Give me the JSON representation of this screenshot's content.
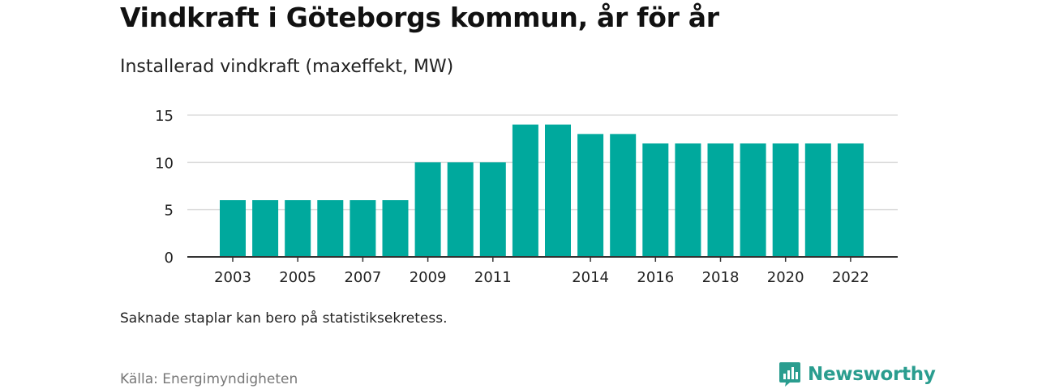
{
  "title": "Vindkraft i Göteborgs kommun, år för år",
  "subtitle": "Installerad vindkraft (maxeffekt, MW)",
  "note": "Saknade staplar kan bero på statistiksekretess.",
  "source": "Källa: Energimyndigheten",
  "brand": {
    "name": "Newsworthy",
    "icon": "newsworthy-logo-icon",
    "color": "#2a9d8f"
  },
  "chart_data": {
    "type": "bar",
    "categories": [
      "2003",
      "2004",
      "2005",
      "2006",
      "2007",
      "2008",
      "2009",
      "2010",
      "2011",
      "2012",
      "2013",
      "2014",
      "2015",
      "2016",
      "2017",
      "2018",
      "2019",
      "2020",
      "2021",
      "2022"
    ],
    "values": [
      6,
      6,
      6,
      6,
      6,
      6,
      10,
      10,
      10,
      14,
      14,
      13,
      13,
      12,
      12,
      12,
      12,
      12,
      12,
      12
    ],
    "x_tick_labels": [
      "2003",
      "2005",
      "2007",
      "2009",
      "2011",
      "2014",
      "2016",
      "2018",
      "2020",
      "2022"
    ],
    "y_ticks": [
      0,
      5,
      10,
      15
    ],
    "ylim": [
      0,
      15
    ],
    "xlabel": "",
    "ylabel": "",
    "grid": true,
    "bar_color": "#00a99d",
    "grid_color": "#dddddd",
    "axis_color": "#333333"
  }
}
